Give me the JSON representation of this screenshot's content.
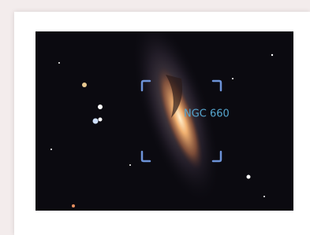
{
  "image": {
    "label": "NGC 660"
  }
}
